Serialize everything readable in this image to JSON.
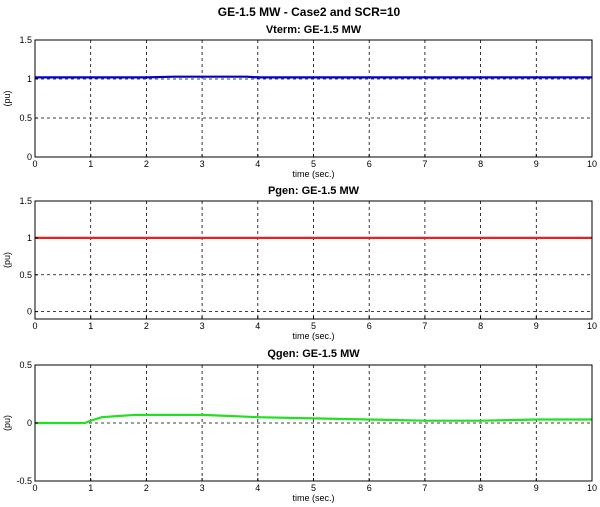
{
  "figure": {
    "title": "GE-1.5 MW - Case2 and SCR=10"
  },
  "chart_data": [
    {
      "type": "line",
      "title": "Vterm: GE-1.5 MW",
      "xlabel": "time (sec.)",
      "ylabel": "(pu)",
      "xlim": [
        0,
        10
      ],
      "ylim": [
        0,
        1.5
      ],
      "xticks": [
        "0",
        "1",
        "2",
        "3",
        "4",
        "5",
        "6",
        "7",
        "8",
        "9",
        "10"
      ],
      "yticks": [
        "0",
        "0.5",
        "1",
        "1.5"
      ],
      "ytick_values": [
        0,
        0.5,
        1,
        1.5
      ],
      "grid": true,
      "series": [
        {
          "color": "#0000cc",
          "lw": 2.2,
          "x": [
            0,
            1,
            2,
            2.5,
            3.8,
            4,
            10
          ],
          "y": [
            1.02,
            1.02,
            1.02,
            1.03,
            1.03,
            1.02,
            1.02
          ]
        }
      ]
    },
    {
      "type": "line",
      "title": "Pgen: GE-1.5 MW",
      "xlabel": "time (sec.)",
      "ylabel": "(pu)",
      "xlim": [
        0,
        10
      ],
      "ylim": [
        -0.1,
        1.5
      ],
      "xticks": [
        "0",
        "1",
        "2",
        "3",
        "4",
        "5",
        "6",
        "7",
        "8",
        "9",
        "10"
      ],
      "yticks": [
        "0",
        "0.5",
        "1",
        "1.5"
      ],
      "ytick_values": [
        0,
        0.5,
        1,
        1.5
      ],
      "grid": true,
      "series": [
        {
          "color": "#e82020",
          "lw": 2.2,
          "x": [
            0,
            10
          ],
          "y": [
            1.0,
            1.0
          ]
        }
      ]
    },
    {
      "type": "line",
      "title": "Qgen: GE-1.5 MW",
      "xlabel": "time (sec.)",
      "ylabel": "(pu)",
      "xlim": [
        0,
        10
      ],
      "ylim": [
        -0.5,
        0.5
      ],
      "xticks": [
        "0",
        "1",
        "2",
        "3",
        "4",
        "5",
        "6",
        "7",
        "8",
        "9",
        "10"
      ],
      "yticks": [
        "-0.5",
        "0",
        "0.5"
      ],
      "ytick_values": [
        -0.5,
        0,
        0.5
      ],
      "grid": true,
      "series": [
        {
          "color": "#22e022",
          "lw": 2.2,
          "x": [
            0,
            0.9,
            1.0,
            1.2,
            1.5,
            1.8,
            2.5,
            3.0,
            3.5,
            4.0,
            5.0,
            6.0,
            7.0,
            8.0,
            9.0,
            10.0
          ],
          "y": [
            0.0,
            0.0,
            0.02,
            0.05,
            0.06,
            0.07,
            0.07,
            0.07,
            0.06,
            0.05,
            0.04,
            0.03,
            0.02,
            0.02,
            0.03,
            0.03
          ]
        }
      ]
    }
  ]
}
